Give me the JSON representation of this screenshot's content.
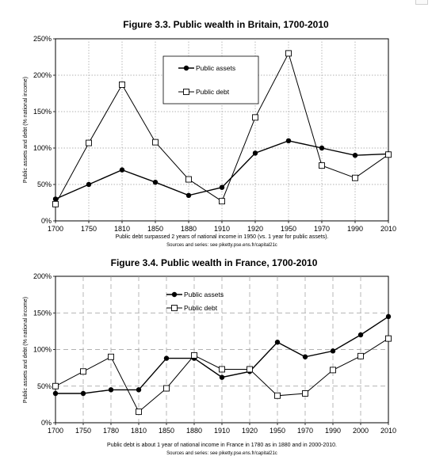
{
  "chart_data": [
    {
      "type": "line",
      "title": "Figure 3.3. Public wealth in Britain, 1700-2010",
      "ylabel": "Public assets and debt (% national income)",
      "xlabel": "",
      "categories": [
        "1700",
        "1750",
        "1810",
        "1850",
        "1880",
        "1910",
        "1920",
        "1950",
        "1970",
        "1990",
        "2010"
      ],
      "yticks": [
        "0%",
        "50%",
        "100%",
        "150%",
        "200%",
        "250%"
      ],
      "ylim": [
        0,
        250
      ],
      "series": [
        {
          "name": "Public assets",
          "marker": "filled-circle",
          "values": [
            30,
            50,
            70,
            53,
            35,
            46,
            93,
            110,
            100,
            90,
            92
          ]
        },
        {
          "name": "Public debt",
          "marker": "open-square",
          "values": [
            23,
            107,
            187,
            108,
            57,
            27,
            142,
            230,
            76,
            59,
            91
          ]
        }
      ],
      "note": "Public debt surpassed 2 years of national income in 1950 (vs. 1 year for public assets).",
      "source": "Sources and series: see piketty.pse.ens.fr/capital21c",
      "grid": "dotted",
      "legend_position": "top-center"
    },
    {
      "type": "line",
      "title": "Figure 3.4. Public wealth in France, 1700-2010",
      "ylabel": "Public assets and debt (% national income)",
      "xlabel": "",
      "categories": [
        "1700",
        "1750",
        "1780",
        "1810",
        "1850",
        "1880",
        "1910",
        "1920",
        "1950",
        "1970",
        "1990",
        "2000",
        "2010"
      ],
      "yticks": [
        "0%",
        "50%",
        "100%",
        "150%",
        "200%"
      ],
      "ylim": [
        0,
        200
      ],
      "series": [
        {
          "name": "Public assets",
          "marker": "filled-circle",
          "values": [
            40,
            40,
            45,
            45,
            88,
            88,
            62,
            70,
            110,
            90,
            98,
            120,
            145
          ]
        },
        {
          "name": "Public debt",
          "marker": "open-square",
          "values": [
            50,
            70,
            90,
            15,
            47,
            92,
            73,
            73,
            37,
            40,
            72,
            91,
            115
          ]
        }
      ],
      "note": "Public debt is about 1 year of national income in France in 1780 as in 1880 and in 2000-2010.",
      "source": "Sources and series: see piketty.pse.ens.fr/capital21c",
      "grid": "dashed",
      "legend_position": "top-left"
    }
  ]
}
